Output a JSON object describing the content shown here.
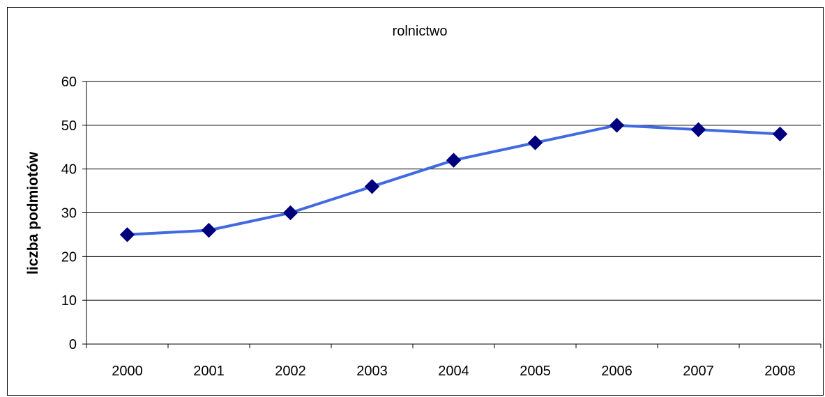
{
  "chart_data": {
    "type": "line",
    "title": "rolnictwo",
    "xlabel": "",
    "ylabel": "liczba podmiotów",
    "ylim": [
      0,
      60
    ],
    "yticks": [
      0,
      10,
      20,
      30,
      40,
      50,
      60
    ],
    "categories": [
      "2000",
      "2001",
      "2002",
      "2003",
      "2004",
      "2005",
      "2006",
      "2007",
      "2008"
    ],
    "series": [
      {
        "values": [
          25,
          26,
          30,
          36,
          42,
          46,
          50,
          49,
          48
        ],
        "line_color": "#4169E1",
        "marker_color": "#00007F",
        "marker": "diamond"
      }
    ],
    "grid": "horizontal major gridlines",
    "legend": "none"
  }
}
